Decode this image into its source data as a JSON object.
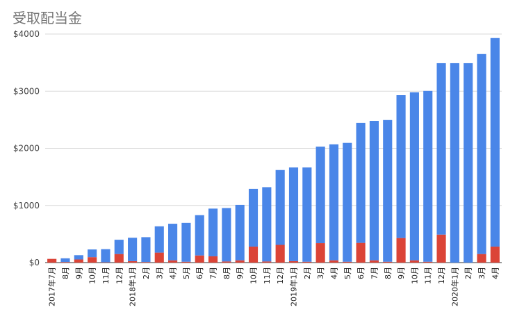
{
  "chart_data": {
    "type": "bar",
    "stacked": true,
    "title": "受取配当金",
    "xlabel": "",
    "ylabel": "",
    "ylim": [
      0,
      4000
    ],
    "y_ticks": [
      "$0",
      "$1000",
      "$2000",
      "$3000",
      "$4000"
    ],
    "grid": true,
    "legend": "none",
    "categories": [
      "2017年7月",
      "8月",
      "9月",
      "10月",
      "11月",
      "12月",
      "2018年1月",
      "2月",
      "3月",
      "4月",
      "5月",
      "6月",
      "7月",
      "8月",
      "9月",
      "10月",
      "11月",
      "12月",
      "2019年1月",
      "2月",
      "3月",
      "4月",
      "5月",
      "6月",
      "7月",
      "8月",
      "9月",
      "10月",
      "11月",
      "12月",
      "2020年1月",
      "2月",
      "3月",
      "4月"
    ],
    "series": [
      {
        "color": "#db4437",
        "values": [
          65,
          10,
          55,
          95,
          5,
          150,
          25,
          10,
          175,
          40,
          15,
          125,
          110,
          20,
          40,
          280,
          20,
          310,
          25,
          15,
          340,
          40,
          15,
          345,
          40,
          15,
          430,
          40,
          15,
          490,
          0,
          0,
          150,
          280
        ]
      },
      {
        "color": "#4a86e8",
        "values": [
          0,
          65,
          75,
          135,
          230,
          250,
          410,
          435,
          460,
          640,
          680,
          705,
          835,
          935,
          970,
          1010,
          1300,
          1310,
          1640,
          1650,
          1690,
          2030,
          2080,
          2100,
          2440,
          2480,
          2500,
          2940,
          2990,
          3000,
          3490,
          3490,
          3500,
          3650
        ]
      }
    ]
  }
}
